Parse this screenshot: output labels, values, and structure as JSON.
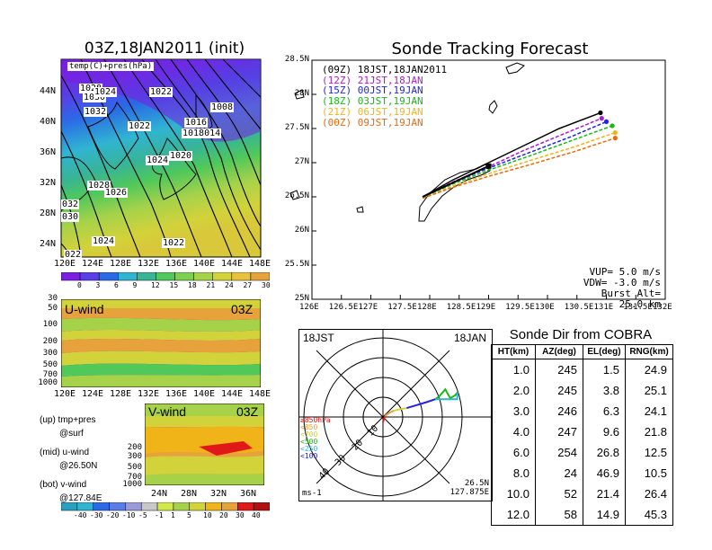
{
  "main_title": "Sonde Tracking Forecast",
  "colors": {
    "purple": "#7a1ee0",
    "blue": "#2a6ae6",
    "cyan": "#30b4d2",
    "teal": "#38b496",
    "green": "#50c85a",
    "yellowgreen": "#a6d24a",
    "yellow": "#d2d23a",
    "orange": "#e8a23c",
    "red": "#e01818"
  },
  "surface_map": {
    "title": "03Z,18JAN2011 (init)",
    "legend_text": "temp(C)+pres(hPa)",
    "xticks": [
      "120E",
      "124E",
      "128E",
      "132E",
      "136E",
      "140E",
      "144E",
      "148E"
    ],
    "yticks": [
      "44N",
      "40N",
      "36N",
      "32N",
      "28N",
      "24N"
    ],
    "isobar_labels": [
      "1028",
      "1030",
      "1024",
      "1022",
      "1032",
      "1008",
      "1022",
      "1016",
      "1018014",
      "1024",
      "1020",
      "1028",
      "1026",
      "032",
      "030",
      "1024",
      "1022",
      "022"
    ],
    "colorbar_labels": [
      "0",
      "3",
      "6",
      "9",
      "12",
      "15",
      "18",
      "21",
      "24",
      "27",
      "30"
    ]
  },
  "u_wind_panel": {
    "title": "U-wind",
    "time": "03Z",
    "yticks": [
      "30",
      "50",
      "100",
      "200",
      "300",
      "500",
      "700",
      "1000"
    ],
    "xticks": [
      "120E",
      "124E",
      "128E",
      "132E",
      "136E",
      "140E",
      "144E",
      "148E"
    ]
  },
  "v_wind_panel": {
    "title": "V-wind",
    "time": "03Z",
    "yticks": [
      "200",
      "300",
      "500",
      "700",
      "1000"
    ],
    "xticks": [
      "24N",
      "28N",
      "32N",
      "36N"
    ],
    "colorbar_labels": [
      "-40",
      "-30",
      "-20",
      "-10",
      "-5",
      "-1",
      "1",
      "5",
      "10",
      "20",
      "30",
      "40"
    ]
  },
  "side_notes": [
    "(up) tmp+pres",
    "@surf",
    "(mid) u-wind",
    "@26.50N",
    "(bot) v-wind",
    "@127.84E"
  ],
  "chart_data": {
    "type": "line",
    "xlabel": "",
    "ylabel": "",
    "xlim": [
      126,
      132
    ],
    "ylim": [
      25,
      28.5
    ],
    "xticks": [
      "126E",
      "126.5E",
      "127E",
      "127.5E",
      "128E",
      "128.5E",
      "129E",
      "129.5E",
      "130E",
      "130.5E",
      "131E",
      "131.5E",
      "132E"
    ],
    "yticks": [
      "28.5N",
      "28N",
      "27.5N",
      "27N",
      "26.5N",
      "26N",
      "25.5N",
      "25N"
    ],
    "series": [
      {
        "name": "(09Z) 18JST,18JAN2011",
        "color": "#000000",
        "x": [
          127.88,
          128.4,
          129.0,
          129.6,
          130.2,
          130.9
        ],
        "y": [
          26.5,
          26.75,
          27.0,
          27.25,
          27.5,
          27.73
        ]
      },
      {
        "name": "(12Z) 21JST,18JAN",
        "color": "#b018d8",
        "x": [
          127.88,
          128.4,
          129.0,
          129.6,
          130.3,
          130.92
        ],
        "y": [
          26.5,
          26.72,
          26.94,
          27.18,
          27.43,
          27.65
        ]
      },
      {
        "name": "(15Z) 00JST,19JAN",
        "color": "#2222e8",
        "x": [
          127.88,
          128.4,
          129.0,
          129.7,
          130.4,
          131.0
        ],
        "y": [
          26.5,
          26.71,
          26.92,
          27.15,
          27.38,
          27.6
        ]
      },
      {
        "name": "(18Z) 03JST,19JAN",
        "color": "#18b818",
        "x": [
          127.88,
          128.4,
          129.0,
          129.7,
          130.4,
          131.1
        ],
        "y": [
          26.49,
          26.69,
          26.89,
          27.1,
          27.32,
          27.54
        ]
      },
      {
        "name": "(21Z) 06JST,19JAN",
        "color": "#f0b418",
        "x": [
          127.88,
          128.4,
          129.0,
          129.7,
          130.45,
          131.15
        ],
        "y": [
          26.48,
          26.66,
          26.84,
          27.03,
          27.23,
          27.44
        ]
      },
      {
        "name": "(00Z) 09JST,19JAN",
        "color": "#e86a10",
        "x": [
          127.88,
          128.4,
          129.0,
          129.7,
          130.45,
          131.15
        ],
        "y": [
          26.48,
          26.64,
          26.8,
          26.97,
          27.16,
          27.36
        ]
      }
    ],
    "annotations": [
      "VUP= 5.0 m/s",
      "VDW= -3.0 m/s",
      "Burst Alt= 25.0 km"
    ]
  },
  "hodograph": {
    "time_label": "18JST",
    "date_label": "18JAN",
    "ring_labels": [
      "10",
      "20",
      "30",
      "40"
    ],
    "level_legend": [
      {
        "label": "≥850hPa",
        "color": "#e01818"
      },
      {
        "label": "<850",
        "color": "#e8a23c"
      },
      {
        "label": "<700",
        "color": "#d2d23a"
      },
      {
        "label": "<500",
        "color": "#18b818"
      },
      {
        "label": "<250",
        "color": "#30b4d2"
      },
      {
        "label": "<100",
        "color": "#2222e8"
      }
    ],
    "units": "ms-1",
    "location_lat": "26.5N",
    "location_lon": "127.875E",
    "trace": [
      {
        "color": "#e01818",
        "u": [
          0,
          0.5,
          1.0
        ],
        "v": [
          -2.5,
          -1.0,
          0.5
        ]
      },
      {
        "color": "#e8a23c",
        "u": [
          1.0,
          3.0,
          5.5
        ],
        "v": [
          0.5,
          2.0,
          3.2
        ]
      },
      {
        "color": "#d2d23a",
        "u": [
          5.5,
          9,
          12
        ],
        "v": [
          3.2,
          4.0,
          4.5
        ]
      },
      {
        "color": "#2222e8",
        "u": [
          12,
          17,
          22,
          26.5
        ],
        "v": [
          4.5,
          6.0,
          7.5,
          9.0
        ]
      },
      {
        "color": "#18b818",
        "u": [
          26.5,
          28.5,
          31.5,
          34,
          36.5,
          37.7
        ],
        "v": [
          9.0,
          10.5,
          14,
          9.5,
          11,
          12.5
        ]
      },
      {
        "color": "#30b4d2",
        "u": [
          37.7,
          37.5,
          35.5,
          26.5
        ],
        "v": [
          12.5,
          9.0,
          9.0,
          9.0
        ]
      }
    ]
  },
  "sonde_table": {
    "title": "Sonde Dir from COBRA",
    "headers": [
      "HT(km)",
      "AZ(deg)",
      "EL(deg)",
      "RNG(km)"
    ],
    "rows": [
      [
        "1.0",
        "245",
        "1.5",
        "24.9"
      ],
      [
        "2.0",
        "245",
        "3.8",
        "25.1"
      ],
      [
        "3.0",
        "246",
        "6.3",
        "24.1"
      ],
      [
        "4.0",
        "247",
        "9.6",
        "21.8"
      ],
      [
        "6.0",
        "254",
        "26.8",
        "12.5"
      ],
      [
        "8.0",
        "24",
        "46.9",
        "10.5"
      ],
      [
        "10.0",
        "52",
        "21.4",
        "26.4"
      ],
      [
        "12.0",
        "58",
        "14.9",
        "45.3"
      ]
    ]
  }
}
